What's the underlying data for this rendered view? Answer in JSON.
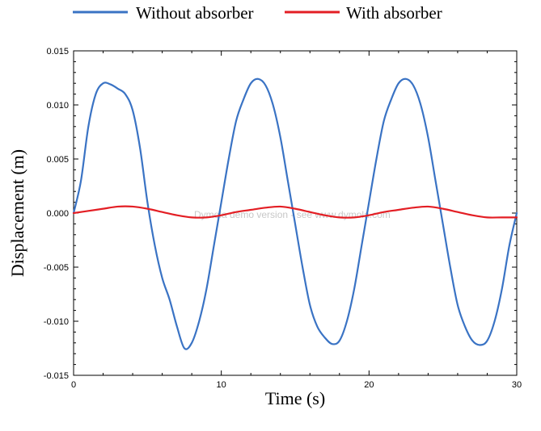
{
  "chart_data": {
    "type": "line",
    "xlabel": "Time (s)",
    "ylabel": "Displacement (m)",
    "xlim": [
      0,
      30
    ],
    "ylim": [
      -0.015,
      0.015
    ],
    "x_ticks": [
      "0",
      "10",
      "20",
      "30"
    ],
    "y_ticks": [
      "0.015",
      "0.010",
      "0.005",
      "0.000",
      "-0.005",
      "-0.010",
      "-0.015"
    ],
    "grid": false,
    "legend_position": "top",
    "watermark": "Dymola demo version - see www.dymola.com",
    "series": [
      {
        "name": "Without absorber",
        "color": "#3a73c4",
        "x": [
          0,
          0.5,
          1,
          1.5,
          2,
          2.5,
          3,
          3.5,
          4,
          4.5,
          5,
          5.5,
          6,
          6.5,
          7,
          7.5,
          8,
          8.5,
          9,
          9.5,
          10,
          10.5,
          11,
          11.5,
          12,
          12.5,
          13,
          13.5,
          14,
          14.5,
          15,
          15.5,
          16,
          16.5,
          17,
          17.5,
          18,
          18.5,
          19,
          19.5,
          20,
          20.5,
          21,
          21.5,
          22,
          22.5,
          23,
          23.5,
          24,
          24.5,
          25,
          25.5,
          26,
          26.5,
          27,
          27.5,
          28,
          28.5,
          29,
          29.5,
          30
        ],
        "y": [
          0.0,
          0.003,
          0.008,
          0.011,
          0.012,
          0.0119,
          0.0115,
          0.011,
          0.0095,
          0.006,
          0.001,
          -0.003,
          -0.006,
          -0.008,
          -0.0105,
          -0.0125,
          -0.012,
          -0.01,
          -0.007,
          -0.003,
          0.001,
          0.005,
          0.0085,
          0.0105,
          0.012,
          0.0124,
          0.0118,
          0.01,
          0.007,
          0.003,
          -0.001,
          -0.005,
          -0.0085,
          -0.0105,
          -0.0115,
          -0.0121,
          -0.0118,
          -0.01,
          -0.007,
          -0.003,
          0.001,
          0.005,
          0.0085,
          0.0105,
          0.012,
          0.0124,
          0.0118,
          0.01,
          0.007,
          0.003,
          -0.001,
          -0.005,
          -0.0085,
          -0.0105,
          -0.0118,
          -0.0122,
          -0.0118,
          -0.01,
          -0.007,
          -0.003,
          0.0
        ]
      },
      {
        "name": "With absorber",
        "color": "#e31e24",
        "x": [
          0,
          1,
          2,
          3,
          4,
          5,
          6,
          7,
          8,
          9,
          10,
          11,
          12,
          13,
          14,
          15,
          16,
          17,
          18,
          19,
          20,
          21,
          22,
          23,
          24,
          25,
          26,
          27,
          28,
          29,
          30
        ],
        "y": [
          0.0,
          0.0002,
          0.0004,
          0.0006,
          0.0006,
          0.0004,
          0.0001,
          -0.0002,
          -0.0004,
          -0.0004,
          -0.0002,
          0.0001,
          0.0003,
          0.0005,
          0.0006,
          0.0004,
          0.0001,
          -0.0002,
          -0.0004,
          -0.0004,
          -0.0002,
          0.0001,
          0.0003,
          0.0005,
          0.0006,
          0.0004,
          0.0001,
          -0.0002,
          -0.0004,
          -0.0004,
          -0.0004
        ]
      }
    ]
  }
}
